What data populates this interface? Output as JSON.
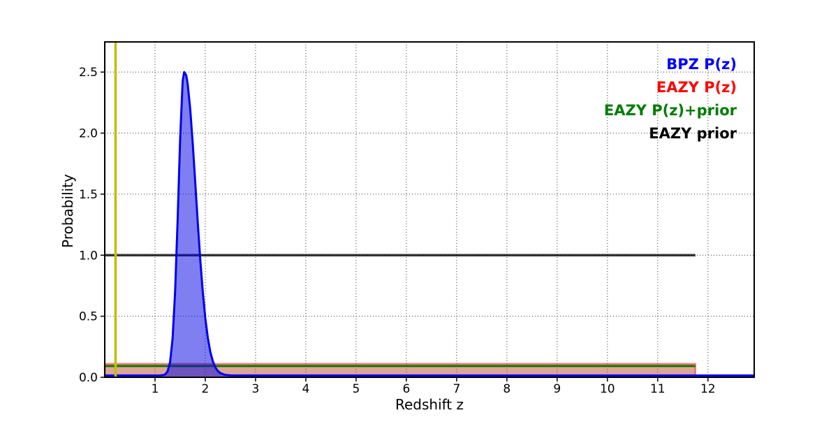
{
  "chart_data": {
    "type": "line",
    "title": "",
    "xlabel": "Redshift z",
    "ylabel": "Probability",
    "xlim": [
      0,
      12.92
    ],
    "ylim": [
      0,
      2.747
    ],
    "xticks": [
      1,
      2,
      3,
      4,
      5,
      6,
      7,
      8,
      9,
      10,
      11,
      12
    ],
    "yticks": [
      0,
      0.5,
      1,
      1.5,
      2,
      2.5
    ],
    "ytick_labels": [
      "0.0",
      "0.5",
      "1.0",
      "1.5",
      "2.0",
      "2.5"
    ],
    "grid": {
      "visible": true,
      "style": "dotted",
      "color": "#333333"
    },
    "legend": {
      "position": "upper-right",
      "style": "text-only",
      "entries": [
        {
          "label": "BPZ P(z)",
          "color": "#0000ff"
        },
        {
          "label": "EAZY P(z)",
          "color": "#ff0000"
        },
        {
          "label": "EAZY P(z)+prior",
          "color": "#007c00"
        },
        {
          "label": "EAZY prior",
          "color": "#000000"
        }
      ]
    },
    "series": [
      {
        "name": "EAZY P(z)",
        "type": "flat",
        "y": 0.11,
        "x_start": 0,
        "x_end": 11.75,
        "color": "rgba(255,0,0,0.45)",
        "fill": "rgba(255,0,0,0.32)",
        "line_width": 2.5,
        "end_caps": true
      },
      {
        "name": "EAZY P(z)+prior",
        "type": "flat",
        "y": 0.092,
        "x_start": 0,
        "x_end": 11.75,
        "color": "#007c00",
        "fill": "rgba(0,124,0,0.13)",
        "line_width": 3,
        "end_caps": false
      },
      {
        "name": "EAZY prior",
        "type": "flat",
        "y": 1.0,
        "x_start": 0,
        "x_end": 11.75,
        "color": "rgba(0,0,0,0.78)",
        "fill": null,
        "line_width": 3.5,
        "end_caps": false
      },
      {
        "name": "BPZ P(z)",
        "type": "curve",
        "color": "#0000ee",
        "fill": "rgba(0,0,230,0.5)",
        "line_width": 3,
        "peak_x": 1.58,
        "peak_y": 2.5,
        "points": [
          [
            0,
            0.015
          ],
          [
            0.5,
            0.015
          ],
          [
            1,
            0.015
          ],
          [
            1.1,
            0.016
          ],
          [
            1.15,
            0.017
          ],
          [
            1.2,
            0.023
          ],
          [
            1.25,
            0.048
          ],
          [
            1.3,
            0.125
          ],
          [
            1.35,
            0.318
          ],
          [
            1.4,
            0.702
          ],
          [
            1.45,
            1.289
          ],
          [
            1.5,
            1.952
          ],
          [
            1.55,
            2.427
          ],
          [
            1.58,
            2.5
          ],
          [
            1.62,
            2.475
          ],
          [
            1.65,
            2.402
          ],
          [
            1.7,
            2.197
          ],
          [
            1.75,
            1.918
          ],
          [
            1.8,
            1.597
          ],
          [
            1.85,
            1.27
          ],
          [
            1.9,
            0.965
          ],
          [
            1.95,
            0.701
          ],
          [
            2,
            0.487
          ],
          [
            2.05,
            0.325
          ],
          [
            2.1,
            0.209
          ],
          [
            2.15,
            0.131
          ],
          [
            2.2,
            0.081
          ],
          [
            2.25,
            0.051
          ],
          [
            2.3,
            0.034
          ],
          [
            2.4,
            0.019
          ],
          [
            2.5,
            0.016
          ],
          [
            2.6,
            0.015
          ],
          [
            3,
            0.015
          ],
          [
            5,
            0.015
          ],
          [
            8,
            0.015
          ],
          [
            11,
            0.015
          ],
          [
            12.92,
            0.015
          ]
        ]
      },
      {
        "name": "spec-z line",
        "type": "vline",
        "x": 0.215,
        "color": "#bfbf00",
        "line_width": 3.5
      }
    ]
  }
}
